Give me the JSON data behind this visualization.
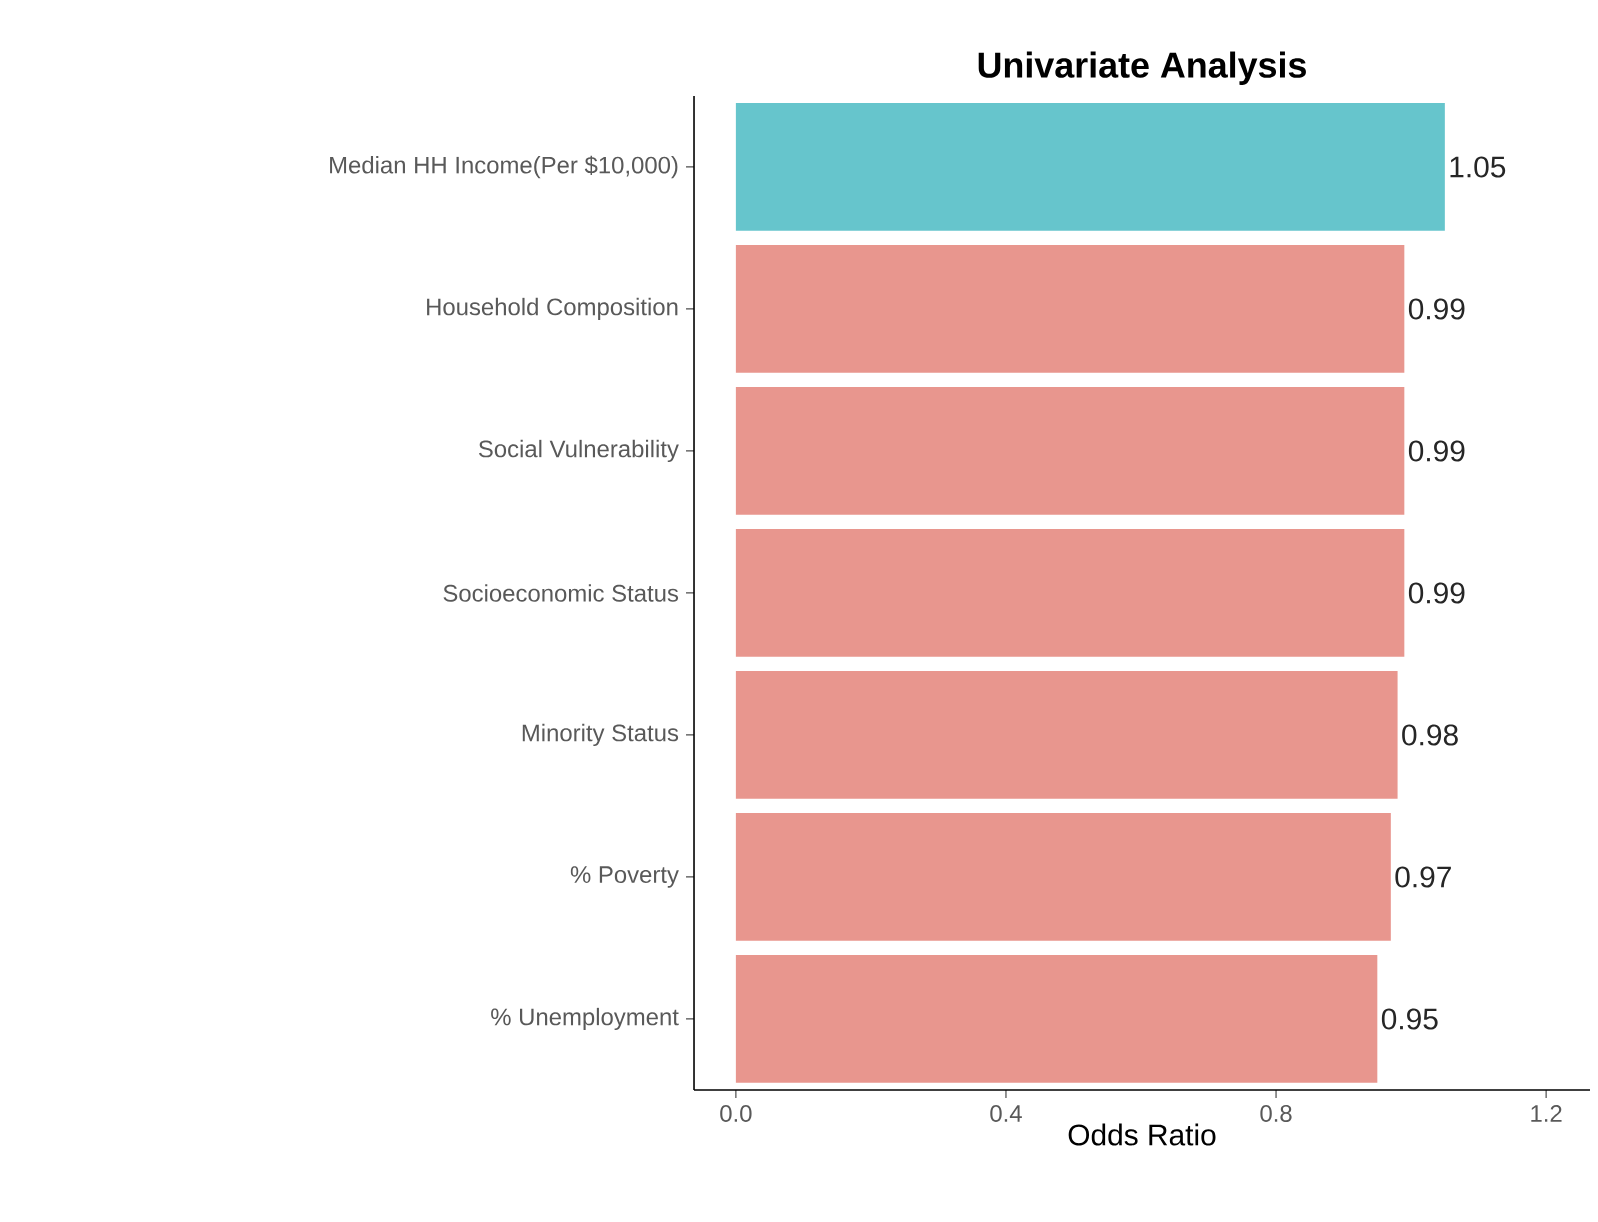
{
  "chart_data": {
    "type": "bar",
    "orientation": "horizontal",
    "title": "Univariate Analysis",
    "xlabel": "Odds Ratio",
    "categories": [
      "Median HH Income(Per $10,000)",
      "Household Composition",
      "Social Vulnerability",
      "Socioeconomic Status",
      "Minority Status",
      "% Poverty",
      "% Unemployment"
    ],
    "values": [
      1.05,
      0.99,
      0.99,
      0.99,
      0.98,
      0.97,
      0.95
    ],
    "colors": [
      "#66c5cc",
      "#e8968e",
      "#e8968e",
      "#e8968e",
      "#e8968e",
      "#e8968e",
      "#e8968e"
    ],
    "xlim": [
      -0.062,
      1.265
    ],
    "xticks": [
      {
        "value": 0,
        "label": "0.0"
      },
      0.4,
      0.8,
      1.2
    ],
    "data_labels": true,
    "grid": false
  }
}
